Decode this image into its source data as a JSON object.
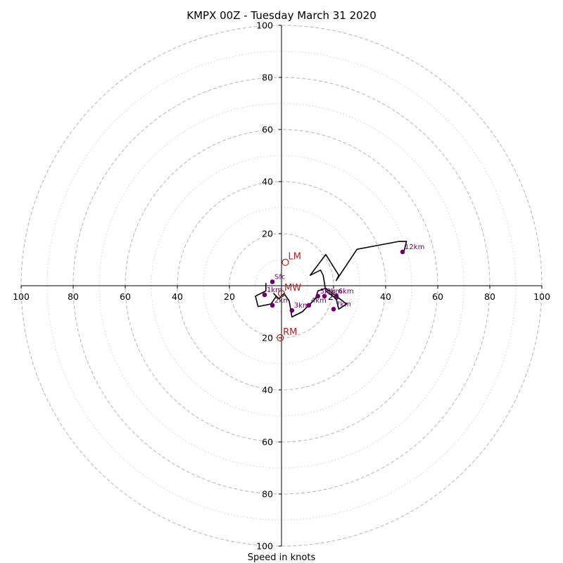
{
  "chart_data": {
    "type": "scatter",
    "title": "KMPX 00Z - Tuesday March 31 2020",
    "xlabel": "Speed in knots",
    "xlim": [
      -100,
      100
    ],
    "ylim": [
      -100,
      100
    ],
    "tick_labels": [
      "100",
      "80",
      "60",
      "40",
      "20"
    ],
    "x_tick_positions": [
      -100,
      -80,
      -60,
      -40,
      -20,
      20,
      40,
      60,
      80,
      100
    ],
    "y_tick_positions": [
      100,
      80,
      60,
      40,
      20,
      -20,
      -40,
      -60,
      -80,
      -100
    ],
    "rings_dashed": [
      20,
      40,
      60,
      80,
      100
    ],
    "rings_dotted": [
      10,
      30,
      50,
      70,
      90
    ],
    "hodograph": [
      [
        -6,
        1
      ],
      [
        -6,
        -2
      ],
      [
        -10,
        -4
      ],
      [
        -9,
        -8
      ],
      [
        -4,
        -7
      ],
      [
        -2,
        -4
      ],
      [
        -3,
        -3
      ],
      [
        -1,
        -5
      ],
      [
        1,
        -3
      ],
      [
        3,
        -6
      ],
      [
        4,
        -12
      ],
      [
        8,
        -10
      ],
      [
        10,
        -8
      ],
      [
        13,
        -5
      ],
      [
        14,
        -2
      ],
      [
        17,
        -1
      ],
      [
        21,
        -4
      ],
      [
        25,
        -7
      ],
      [
        22,
        -9
      ],
      [
        21,
        -5
      ],
      [
        17,
        -2
      ],
      [
        16,
        4
      ],
      [
        15,
        6
      ],
      [
        11,
        4
      ],
      [
        17,
        12
      ],
      [
        22,
        4
      ],
      [
        21,
        2
      ],
      [
        29,
        14
      ],
      [
        45,
        17
      ],
      [
        48,
        17
      ],
      [
        47,
        13
      ]
    ],
    "height_points": [
      {
        "label": "Sfc",
        "x": -3.5,
        "y": 1.5
      },
      {
        "label": "1km",
        "x": -6.5,
        "y": -3.5
      },
      {
        "label": "2km",
        "x": -3.5,
        "y": -7.5
      },
      {
        "label": "3km",
        "x": 4,
        "y": -9.5
      },
      {
        "label": "4km",
        "x": 10.5,
        "y": -7.5
      },
      {
        "label": "5km",
        "x": 14,
        "y": -4
      },
      {
        "label": "6km",
        "x": 21,
        "y": -4
      },
      {
        "label": "7km",
        "x": 20,
        "y": -9
      },
      {
        "label": "9km",
        "x": 16.5,
        "y": -4
      },
      {
        "label": "12km",
        "x": 46.5,
        "y": 13
      }
    ],
    "motion_points": [
      {
        "label": "LM",
        "x": 1.5,
        "y": 9
      },
      {
        "label": "MW",
        "x": 0,
        "y": -3
      },
      {
        "label": "RM",
        "x": -0.5,
        "y": -20
      }
    ],
    "colors": {
      "hodograph": "#000000",
      "height_points": "#6a006a",
      "motion": "#b22222",
      "grid": "#bbbbbb"
    }
  }
}
